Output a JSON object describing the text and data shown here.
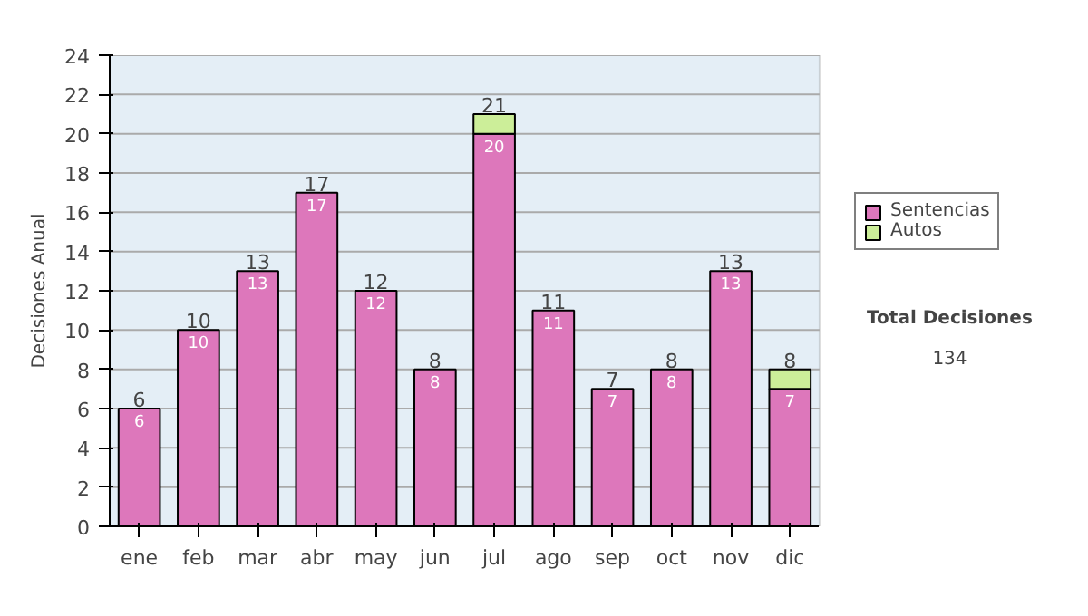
{
  "chart_data": {
    "type": "bar",
    "stacked": true,
    "ylabel": "Decisiones Anual",
    "categories": [
      "ene",
      "feb",
      "mar",
      "abr",
      "may",
      "jun",
      "jul",
      "ago",
      "sep",
      "oct",
      "nov",
      "dic"
    ],
    "series": [
      {
        "name": "Sentencias",
        "color": "#dd77bb",
        "values": [
          6,
          10,
          13,
          17,
          12,
          8,
          20,
          11,
          7,
          8,
          13,
          7
        ],
        "value_labels": [
          "6",
          "10",
          "13",
          "17",
          "12",
          "8",
          "20",
          "11",
          "7",
          "8",
          "13",
          "7"
        ]
      },
      {
        "name": "Autos",
        "color": "#ccee99",
        "values": [
          0,
          0,
          0,
          0,
          0,
          0,
          1,
          0,
          0,
          0,
          0,
          1
        ]
      }
    ],
    "totals": [
      "6",
      "10",
      "13",
      "17",
      "12",
      "8",
      "21",
      "11",
      "7",
      "8",
      "13",
      "8"
    ],
    "ylim": [
      0,
      24
    ],
    "yticks": [
      0,
      2,
      4,
      6,
      8,
      10,
      12,
      14,
      16,
      18,
      20,
      22,
      24
    ],
    "grid": "y",
    "legend": "right",
    "annotations": [
      "Total Decisiones",
      "134"
    ]
  }
}
